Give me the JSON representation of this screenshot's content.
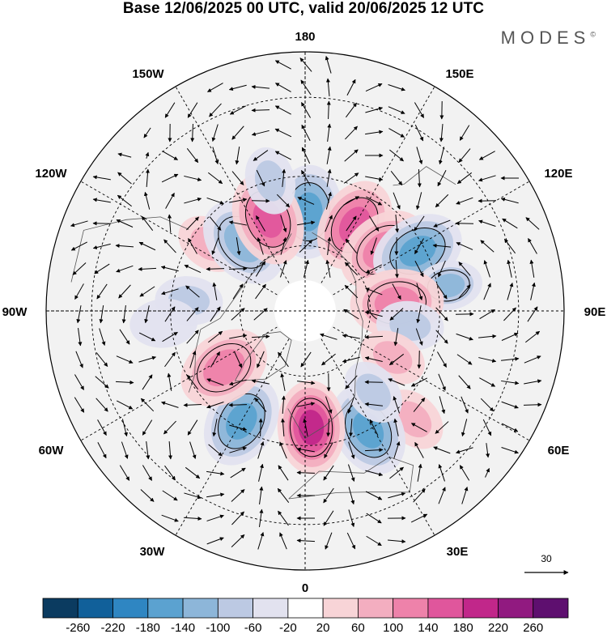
{
  "title": "Base 12/06/2025 00 UTC, valid 20/06/2025 12 UTC",
  "brand": "MODES",
  "brand_mark": "©",
  "longitude_labels": [
    {
      "id": "180",
      "text": "180"
    },
    {
      "id": "150E",
      "text": "150E"
    },
    {
      "id": "120E",
      "text": "120E"
    },
    {
      "id": "90E",
      "text": "90E"
    },
    {
      "id": "60E",
      "text": "60E"
    },
    {
      "id": "30E",
      "text": "30E"
    },
    {
      "id": "0",
      "text": "0"
    },
    {
      "id": "30W",
      "text": "30W"
    },
    {
      "id": "60W",
      "text": "60W"
    },
    {
      "id": "90W",
      "text": "90W"
    },
    {
      "id": "120W",
      "text": "120W"
    },
    {
      "id": "150W",
      "text": "150W"
    }
  ],
  "reference_vector": "30",
  "colorbar": {
    "tick_labels": [
      "-260",
      "-220",
      "-180",
      "-140",
      "-100",
      "-60",
      "-20",
      "20",
      "60",
      "100",
      "140",
      "180",
      "220",
      "260"
    ],
    "colors": [
      "#0b3b60",
      "#11609a",
      "#2f86c2",
      "#5ba2d0",
      "#8db6d9",
      "#bcc9e3",
      "#e2e2ef",
      "#ffffff",
      "#f8d4d7",
      "#f3aec0",
      "#ee82aa",
      "#e0569c",
      "#c1278a",
      "#911a80",
      "#5e0f6f"
    ]
  },
  "anomalies": [
    {
      "lon": 178,
      "lat": 60,
      "value": -160
    },
    {
      "lon": 150,
      "lat": 60,
      "value": 170
    },
    {
      "lon": 128,
      "lat": 60,
      "value": 120
    },
    {
      "lon": 118,
      "lat": 52,
      "value": -150
    },
    {
      "lon": 100,
      "lat": 47,
      "value": -100
    },
    {
      "lon": 95,
      "lat": 62,
      "value": 130
    },
    {
      "lon": 82,
      "lat": 58,
      "value": -60
    },
    {
      "lon": 62,
      "lat": 60,
      "value": 60
    },
    {
      "lon": 45,
      "lat": 45,
      "value": 60
    },
    {
      "lon": 28,
      "lat": 50,
      "value": -160
    },
    {
      "lon": 40,
      "lat": 58,
      "value": -60
    },
    {
      "lon": 3,
      "lat": 55,
      "value": 190
    },
    {
      "lon": -30,
      "lat": 52,
      "value": -160
    },
    {
      "lon": -55,
      "lat": 60,
      "value": 130
    },
    {
      "lon": -95,
      "lat": 55,
      "value": -60
    },
    {
      "lon": -125,
      "lat": 55,
      "value": 80
    },
    {
      "lon": -138,
      "lat": 62,
      "value": -110
    },
    {
      "lon": -158,
      "lat": 60,
      "value": 140
    },
    {
      "lon": -165,
      "lat": 50,
      "value": -60
    },
    {
      "lon": -85,
      "lat": 48,
      "value": -40
    }
  ]
}
